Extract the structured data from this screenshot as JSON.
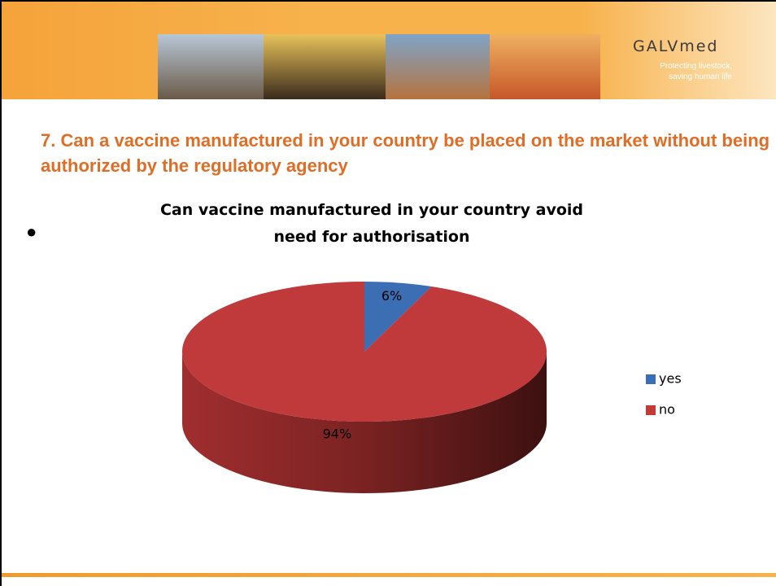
{
  "slide": {
    "logo": "GALVmed",
    "tagline": [
      "Protecting livestock,",
      "saving human life"
    ],
    "heading": "7. Can a vaccine manufactured in your country be placed on the market without being authorized by the regulatory agency"
  },
  "chart_data": {
    "type": "pie",
    "title": "Can vaccine manufactured in your country avoid need for authorisation",
    "categories": [
      "yes",
      "no"
    ],
    "values": [
      6,
      94
    ],
    "value_labels": [
      "6%",
      "94%"
    ],
    "colors": [
      "#3c6eb4",
      "#c0393b"
    ],
    "legend": "right",
    "three_d": true
  }
}
